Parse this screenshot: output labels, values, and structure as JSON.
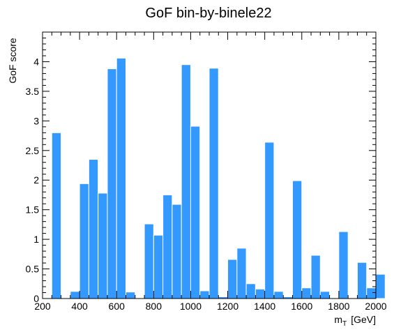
{
  "chart_data": {
    "type": "bar",
    "title": "GoF bin-by-binele22",
    "ylabel": "GoF score",
    "xlabel_main": "m",
    "xlabel_sub": "T",
    "xlabel_unit": "[GeV]",
    "xlim": [
      200,
      2000
    ],
    "ylim": [
      0,
      4.5
    ],
    "bin_width": 50,
    "bin_edges_start": 200,
    "color": "#3399ff",
    "x_ticks": [
      200,
      400,
      600,
      800,
      1000,
      1200,
      1400,
      1600,
      1800,
      2000
    ],
    "x_tick_labels": [
      "200",
      "400",
      "600",
      "800",
      "1000",
      "1200",
      "1400",
      "1600",
      "1800",
      "2000"
    ],
    "y_ticks": [
      0,
      0.5,
      1,
      1.5,
      2,
      2.5,
      3,
      3.5,
      4
    ],
    "y_tick_labels": [
      "0",
      "0.5",
      "1",
      "1.5",
      "2",
      "2.5",
      "3",
      "3.5",
      "4"
    ],
    "values": [
      0,
      2.8,
      0,
      0.12,
      1.94,
      2.35,
      1.78,
      3.88,
      4.06,
      0.11,
      0,
      1.26,
      1.07,
      1.75,
      1.59,
      3.95,
      2.91,
      0.13,
      3.89,
      0.03,
      0.66,
      0.85,
      0.25,
      0.16,
      2.64,
      0.12,
      0.03,
      1.99,
      0.18,
      0.73,
      0.12,
      0,
      1.13,
      0,
      0.61,
      0.18,
      0.41,
      0
    ]
  }
}
